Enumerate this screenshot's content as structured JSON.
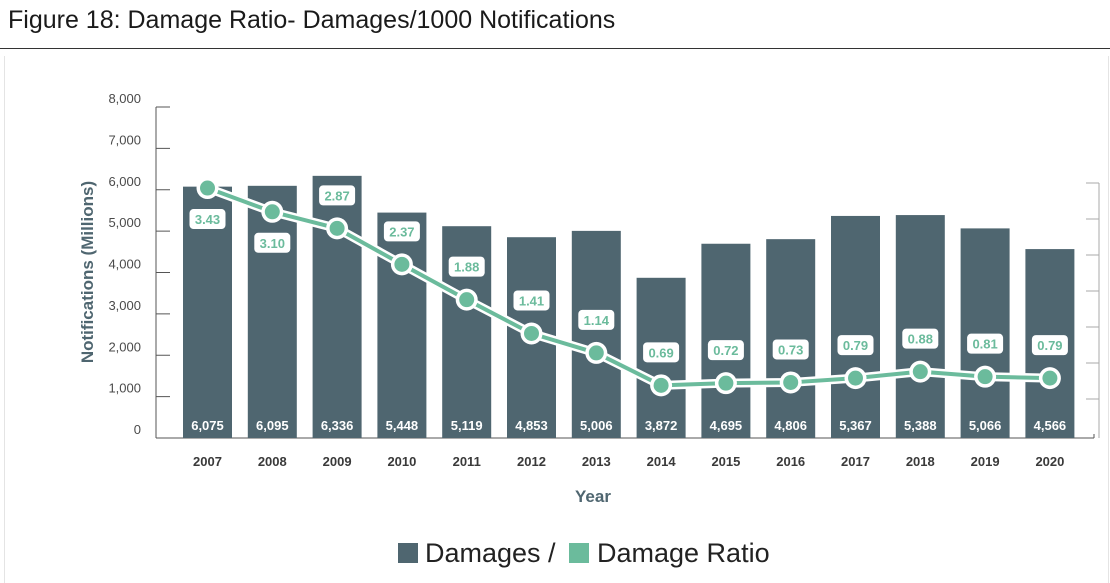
{
  "title": "Figure 18: Damage Ratio- Damages/1000 Notifications",
  "chart_data": {
    "type": "bar+line",
    "title": "Figure 18: Damage Ratio- Damages/1000 Notifications",
    "xlabel": "Year",
    "ylabel": "Notifications (Millions)",
    "categories": [
      "2007",
      "2008",
      "2009",
      "2010",
      "2011",
      "2012",
      "2013",
      "2014",
      "2015",
      "2016",
      "2017",
      "2018",
      "2019",
      "2020"
    ],
    "ylim": [
      0,
      8000
    ],
    "yticks": [
      "0",
      "1,000",
      "2,000",
      "3,000",
      "4,000",
      "5,000",
      "6,000",
      "7,000",
      "8,000"
    ],
    "y2lim": [
      0,
      3.5
    ],
    "y2_tick_step": 0.5,
    "y2_labels_shown": false,
    "series": [
      {
        "name": "Damages",
        "type": "bar",
        "color": "#4f6670",
        "values": [
          6075,
          6095,
          6336,
          5448,
          5119,
          4853,
          5006,
          3872,
          4695,
          4806,
          5367,
          5388,
          5066,
          4566
        ],
        "labels": [
          "6,075",
          "6,095",
          "6,336",
          "5,448",
          "5,119",
          "4,853",
          "5,006",
          "3,872",
          "4,695",
          "4,806",
          "5,367",
          "5,388",
          "5,066",
          "4,566"
        ]
      },
      {
        "name": "Damage Ratio",
        "type": "line",
        "axis": "right",
        "color": "#6bbb9c",
        "values": [
          3.43,
          3.1,
          2.87,
          2.37,
          1.88,
          1.41,
          1.14,
          0.69,
          0.72,
          0.73,
          0.79,
          0.88,
          0.81,
          0.79
        ],
        "labels": [
          "3.43",
          "3.10",
          "2.87",
          "2.37",
          "1.88",
          "1.41",
          "1.14",
          "0.69",
          "0.72",
          "0.73",
          "0.79",
          "0.88",
          "0.81",
          "0.79"
        ]
      }
    ],
    "legend": {
      "position": "bottom",
      "items": [
        "Damages /",
        "Damage Ratio"
      ]
    },
    "grid": false
  }
}
